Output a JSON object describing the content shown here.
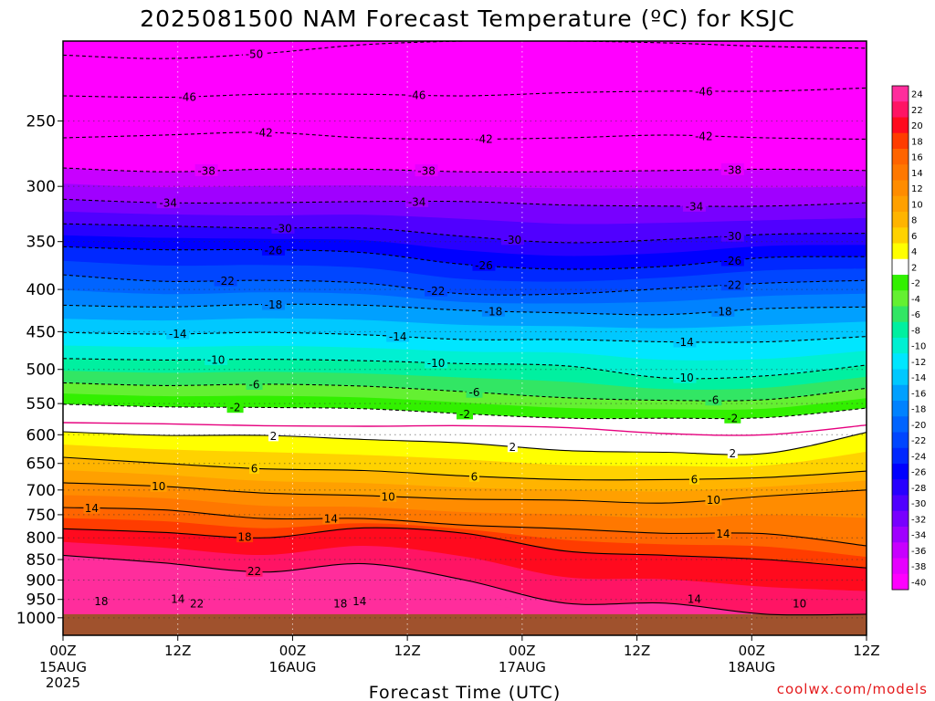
{
  "chart_data": {
    "type": "heatmap",
    "title": "2025081500 NAM Forecast Temperature (ºC) for KSJC",
    "xlabel": "Forecast Time (UTC)",
    "ylabel": "",
    "credit": "coolwx.com/models",
    "y_scale": "log",
    "y_inverted": true,
    "ylim": [
      1050,
      200
    ],
    "y_ticks": [
      250,
      300,
      350,
      400,
      450,
      500,
      550,
      600,
      650,
      700,
      750,
      800,
      850,
      900,
      950,
      1000
    ],
    "x_ticks": [
      {
        "hour": 0,
        "label": "00Z",
        "sub": [
          "15AUG",
          "2025"
        ]
      },
      {
        "hour": 12,
        "label": "12Z",
        "sub": []
      },
      {
        "hour": 24,
        "label": "00Z",
        "sub": [
          "16AUG"
        ]
      },
      {
        "hour": 36,
        "label": "12Z",
        "sub": []
      },
      {
        "hour": 48,
        "label": "00Z",
        "sub": [
          "17AUG"
        ]
      },
      {
        "hour": 60,
        "label": "12Z",
        "sub": []
      },
      {
        "hour": 72,
        "label": "00Z",
        "sub": [
          "18AUG"
        ]
      },
      {
        "hour": 84,
        "label": "12Z",
        "sub": []
      }
    ],
    "xlim_hours": [
      0,
      84
    ],
    "ground_level_hpa": 990,
    "ground_color": "#a0522d",
    "colorbar": {
      "labels": [
        "24",
        "22",
        "20",
        "18",
        "16",
        "14",
        "12",
        "10",
        "8",
        "6",
        "4",
        "2",
        "-2",
        "-4",
        "-6",
        "-8",
        "-10",
        "-12",
        "-14",
        "-16",
        "-18",
        "-20",
        "-22",
        "-24",
        "-26",
        "-28",
        "-30",
        "-32",
        "-34",
        "-36",
        "-38",
        "-40"
      ],
      "colors": [
        "#ff2d9c",
        "#ff1464",
        "#ff0a1e",
        "#ff3c00",
        "#ff6400",
        "#ff7800",
        "#ff8c00",
        "#ffa000",
        "#ffb400",
        "#ffd200",
        "#ffff00",
        "#ffffff",
        "#32f000",
        "#64f032",
        "#32e664",
        "#00f0a0",
        "#00f0d2",
        "#00e6ff",
        "#00c8ff",
        "#00a0ff",
        "#0082ff",
        "#0064ff",
        "#0046ff",
        "#0028ff",
        "#0000ff",
        "#2800ff",
        "#5000ff",
        "#7800ff",
        "#a000ff",
        "#c800ff",
        "#e600ff",
        "#ff00ff"
      ]
    },
    "temperature_profile": {
      "pressure": [
        200,
        250,
        300,
        350,
        400,
        450,
        500,
        550,
        600,
        650,
        700,
        750,
        800,
        850,
        900,
        950,
        1000
      ],
      "temp_mean": [
        -53,
        -46,
        -37,
        -28,
        -21,
        -14,
        -9,
        -4,
        1,
        6,
        10,
        14,
        16,
        19,
        21,
        20,
        18
      ]
    },
    "isotherms": [
      {
        "value": -50,
        "p": [
          208,
          210,
          207,
          202,
          200,
          200,
          201,
          203,
          204
        ]
      },
      {
        "value": -46,
        "p": [
          233,
          234,
          232,
          232,
          233,
          231,
          230,
          230,
          228
        ]
      },
      {
        "value": -42,
        "p": [
          262,
          260,
          258,
          262,
          263,
          262,
          260,
          262,
          263
        ]
      },
      {
        "value": -38,
        "p": [
          285,
          288,
          286,
          286,
          288,
          288,
          287,
          286,
          287
        ]
      },
      {
        "value": -34,
        "p": [
          311,
          314,
          314,
          313,
          313,
          316,
          317,
          317,
          314
        ]
      },
      {
        "value": -30,
        "p": [
          333,
          335,
          337,
          337,
          345,
          351,
          348,
          343,
          342
        ]
      },
      {
        "value": -26,
        "p": [
          355,
          358,
          358,
          361,
          373,
          378,
          375,
          366,
          365
        ]
      },
      {
        "value": -22,
        "p": [
          384,
          391,
          390,
          393,
          405,
          405,
          399,
          393,
          390
        ]
      },
      {
        "value": -18,
        "p": [
          418,
          420,
          417,
          418,
          424,
          427,
          429,
          422,
          420
        ]
      },
      {
        "value": -14,
        "p": [
          451,
          453,
          451,
          454,
          460,
          460,
          463,
          463,
          456
        ]
      },
      {
        "value": -10,
        "p": [
          485,
          487,
          486,
          488,
          492,
          495,
          512,
          509,
          494
        ]
      },
      {
        "value": -6,
        "p": [
          519,
          523,
          521,
          524,
          532,
          541,
          545,
          544,
          527
        ]
      },
      {
        "value": -2,
        "p": [
          551,
          555,
          556,
          558,
          566,
          573,
          573,
          572,
          557
        ]
      },
      {
        "value": 2,
        "p": [
          595,
          601,
          601,
          608,
          614,
          627,
          630,
          632,
          596
        ]
      },
      {
        "value": 6,
        "p": [
          639,
          650,
          660,
          663,
          673,
          680,
          680,
          676,
          664
        ]
      },
      {
        "value": 10,
        "p": [
          686,
          693,
          706,
          711,
          718,
          720,
          726,
          712,
          700
        ]
      },
      {
        "value": 14,
        "p": [
          735,
          740,
          758,
          758,
          772,
          780,
          790,
          791,
          818
        ]
      },
      {
        "value": 18,
        "p": [
          780,
          788,
          800,
          778,
          790,
          830,
          840,
          850,
          870
        ]
      },
      {
        "value": 22,
        "p": [
          840,
          858,
          880,
          860,
          900,
          960,
          960,
          990,
          990
        ]
      }
    ],
    "isotherm_labels": [
      {
        "value": -50,
        "hour": 20
      },
      {
        "value": -46,
        "hour": 13
      },
      {
        "value": -46,
        "hour": 37
      },
      {
        "value": -46,
        "hour": 67
      },
      {
        "value": -42,
        "hour": 21
      },
      {
        "value": -42,
        "hour": 44
      },
      {
        "value": -42,
        "hour": 67
      },
      {
        "value": -38,
        "hour": 15
      },
      {
        "value": -38,
        "hour": 38
      },
      {
        "value": -38,
        "hour": 70
      },
      {
        "value": -34,
        "hour": 11
      },
      {
        "value": -34,
        "hour": 37
      },
      {
        "value": -34,
        "hour": 66
      },
      {
        "value": -30,
        "hour": 23
      },
      {
        "value": -30,
        "hour": 47
      },
      {
        "value": -30,
        "hour": 70
      },
      {
        "value": -26,
        "hour": 22
      },
      {
        "value": -26,
        "hour": 44
      },
      {
        "value": -26,
        "hour": 70
      },
      {
        "value": -22,
        "hour": 17
      },
      {
        "value": -22,
        "hour": 39
      },
      {
        "value": -22,
        "hour": 70
      },
      {
        "value": -18,
        "hour": 22
      },
      {
        "value": -18,
        "hour": 45
      },
      {
        "value": -18,
        "hour": 69
      },
      {
        "value": -14,
        "hour": 12
      },
      {
        "value": -14,
        "hour": 35
      },
      {
        "value": -14,
        "hour": 65
      },
      {
        "value": -10,
        "hour": 16
      },
      {
        "value": -10,
        "hour": 39
      },
      {
        "value": -10,
        "hour": 65
      },
      {
        "value": -6,
        "hour": 20
      },
      {
        "value": -6,
        "hour": 43
      },
      {
        "value": -6,
        "hour": 68
      },
      {
        "value": -2,
        "hour": 18
      },
      {
        "value": -2,
        "hour": 42
      },
      {
        "value": -2,
        "hour": 70
      },
      {
        "value": 2,
        "hour": 22
      },
      {
        "value": 2,
        "hour": 47
      },
      {
        "value": 2,
        "hour": 70
      },
      {
        "value": 6,
        "hour": 20
      },
      {
        "value": 6,
        "hour": 43
      },
      {
        "value": 6,
        "hour": 66
      },
      {
        "value": 10,
        "hour": 10
      },
      {
        "value": 10,
        "hour": 34
      },
      {
        "value": 10,
        "hour": 68
      },
      {
        "value": 14,
        "hour": 3
      },
      {
        "value": 14,
        "hour": 28
      },
      {
        "value": 14,
        "hour": 69
      },
      {
        "value": 18,
        "hour": 19
      },
      {
        "value": 22,
        "hour": 20
      }
    ],
    "zero_isotherm_p": [
      580,
      582,
      585,
      586,
      585,
      588,
      598,
      600,
      584
    ],
    "near_surface_labels": [
      {
        "value": 18,
        "hour": 4
      },
      {
        "value": 22,
        "hour": 14
      },
      {
        "value": 14,
        "hour": 12
      },
      {
        "value": 18,
        "hour": 29
      },
      {
        "value": 14,
        "hour": 31
      },
      {
        "value": 14,
        "hour": 66
      },
      {
        "value": 10,
        "hour": 77
      }
    ]
  }
}
